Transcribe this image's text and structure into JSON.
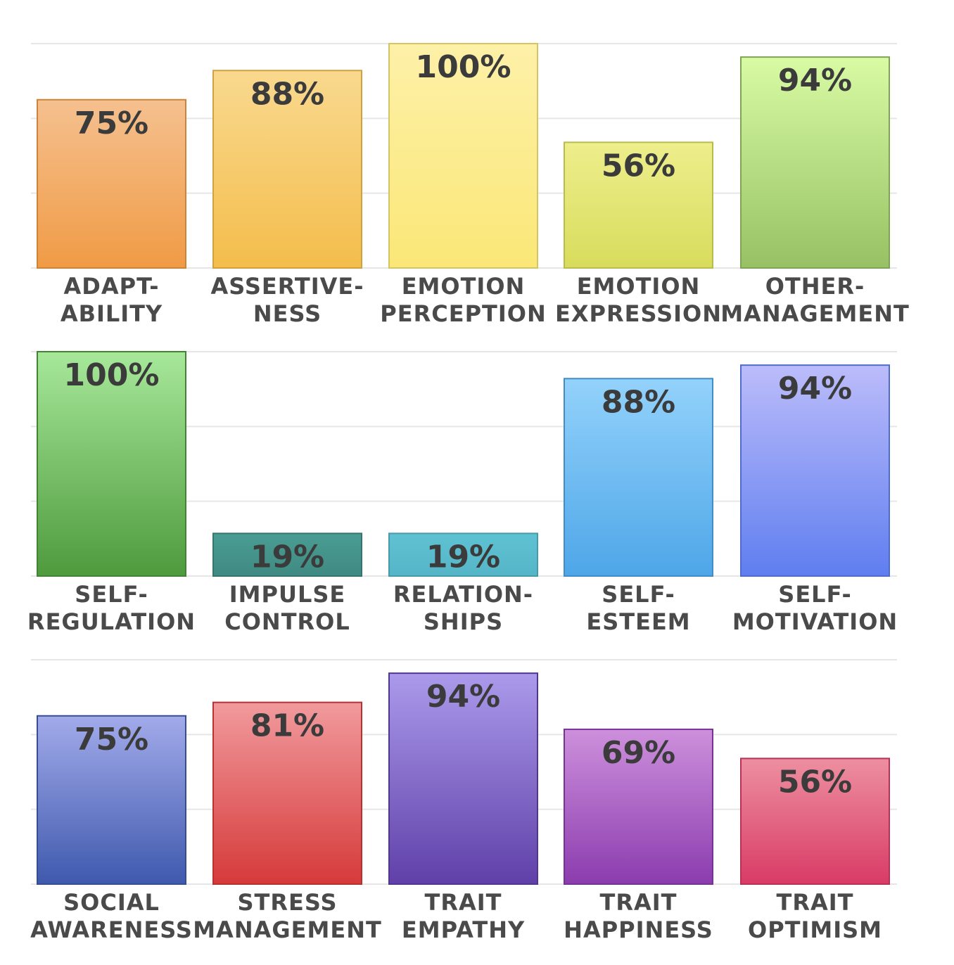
{
  "chart_data": [
    {
      "type": "bar",
      "categories": [
        [
          "ADAPT-",
          "ABILITY"
        ],
        [
          "ASSERTIVE-",
          "NESS"
        ],
        [
          "EMOTION",
          "PERCEPTION"
        ],
        [
          "EMOTION",
          "EXPRESSION"
        ],
        [
          "OTHER-",
          "MANAGEMENT"
        ]
      ],
      "values": [
        75,
        88,
        100,
        56,
        94
      ],
      "value_labels": [
        "75%",
        "88%",
        "100%",
        "56%",
        "94%"
      ],
      "ylim": [
        0,
        100
      ],
      "grid": true,
      "colors": [
        [
          "#f5c08f",
          "#f09b45"
        ],
        [
          "#f9d98f",
          "#f4bd4c"
        ],
        [
          "#fdf1a8",
          "#fbe777"
        ],
        [
          "#eeee8c",
          "#d8dc5c"
        ],
        [
          "#d8fba4",
          "#97c164"
        ]
      ]
    },
    {
      "type": "bar",
      "categories": [
        [
          "SELF-",
          "REGULATION"
        ],
        [
          "IMPULSE",
          "CONTROL"
        ],
        [
          "RELATION-",
          "SHIPS"
        ],
        [
          "SELF-",
          "ESTEEM"
        ],
        [
          "SELF-",
          "MOTIVATION"
        ]
      ],
      "values": [
        100,
        19,
        19,
        88,
        94
      ],
      "value_labels": [
        "100%",
        "19%",
        "19%",
        "88%",
        "94%"
      ],
      "ylim": [
        0,
        100
      ],
      "grid": true,
      "colors": [
        [
          "#a7e89a",
          "#4e9a3d"
        ],
        [
          "#4a9d93",
          "#3f8a82"
        ],
        [
          "#5fc2d2",
          "#54b5c7"
        ],
        [
          "#93d2fb",
          "#4ea6e8"
        ],
        [
          "#bcbcfa",
          "#5f7ef0"
        ]
      ]
    },
    {
      "type": "bar",
      "categories": [
        [
          "SOCIAL",
          "AWARENESS"
        ],
        [
          "STRESS",
          "MANAGEMENT"
        ],
        [
          "TRAIT",
          "EMPATHY"
        ],
        [
          "TRAIT",
          "HAPPINESS"
        ],
        [
          "TRAIT",
          "OPTIMISM"
        ]
      ],
      "values": [
        75,
        81,
        94,
        69,
        56
      ],
      "value_labels": [
        "75%",
        "81%",
        "94%",
        "69%",
        "56%"
      ],
      "ylim": [
        0,
        100
      ],
      "grid": true,
      "colors": [
        [
          "#a2abea",
          "#3f59ad"
        ],
        [
          "#f19a9d",
          "#d63a3a"
        ],
        [
          "#ab9aeb",
          "#5f40a8"
        ],
        [
          "#cd90dc",
          "#8b3cae"
        ],
        [
          "#ed8fa0",
          "#d93b66"
        ]
      ]
    }
  ]
}
